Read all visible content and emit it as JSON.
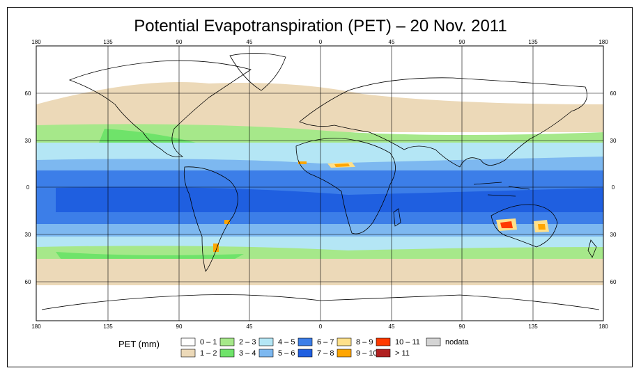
{
  "title": "Potential Evapotranspiration (PET) – 20 Nov. 2011",
  "lon_ticks": [
    "180",
    "135",
    "90",
    "45",
    "0",
    "45",
    "90",
    "135",
    "180"
  ],
  "lat_ticks": [
    "60",
    "30",
    "0",
    "30",
    "60"
  ],
  "legend": {
    "label": "PET (mm)",
    "items": [
      {
        "label": "0 – 1",
        "color": "#ffffff"
      },
      {
        "label": "1 – 2",
        "color": "#ecd9b8"
      },
      {
        "label": "2 – 3",
        "color": "#a6e88a"
      },
      {
        "label": "3 – 4",
        "color": "#6fe36a"
      },
      {
        "label": "4 – 5",
        "color": "#b4e6f5"
      },
      {
        "label": "5 – 6",
        "color": "#7db8f0"
      },
      {
        "label": "6 – 7",
        "color": "#3c7ee8"
      },
      {
        "label": "7 – 8",
        "color": "#1f5fe0"
      },
      {
        "label": "8 – 9",
        "color": "#ffe08a"
      },
      {
        "label": "9 – 10",
        "color": "#ffa500"
      },
      {
        "label": "10 – 11",
        "color": "#ff3a00"
      },
      {
        "label": "> 11",
        "color": "#b02020"
      },
      {
        "label": "nodata",
        "color": "#d4d4d4"
      }
    ]
  }
}
